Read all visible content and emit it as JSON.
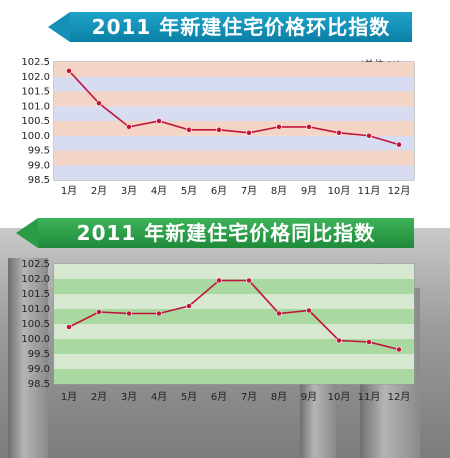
{
  "titles": {
    "top": "2011 年新建住宅价格环比指数",
    "bottom": "2011 年新建住宅价格同比指数"
  },
  "units": {
    "top": "(单位:%)",
    "bottom": "(单位:%)"
  },
  "colors": {
    "line": "#c0143c",
    "top_band_a": "#d8dcf0",
    "top_band_b": "#f4d4c4",
    "bottom_band_a": "#a9d8a0",
    "bottom_band_b": "#d6e8d0"
  },
  "chart_data": [
    {
      "type": "line",
      "title": "2011 年新建住宅价格环比指数",
      "categories": [
        "1月",
        "2月",
        "3月",
        "4月",
        "5月",
        "6月",
        "7月",
        "8月",
        "9月",
        "10月",
        "11月",
        "12月"
      ],
      "series": [
        {
          "values": [
            102.2,
            101.1,
            100.3,
            100.5,
            100.2,
            100.2,
            100.1,
            100.3,
            100.3,
            100.1,
            100.0,
            99.7
          ]
        }
      ],
      "ylim": [
        98.5,
        102.5
      ],
      "yticks": [
        "98.5",
        "99.0",
        "99.5",
        "100.0",
        "100.5",
        "101.0",
        "101.5",
        "102.0",
        "102.5"
      ],
      "unit": "(单位:%)"
    },
    {
      "type": "line",
      "title": "2011 年新建住宅价格同比指数",
      "categories": [
        "1月",
        "2月",
        "3月",
        "4月",
        "5月",
        "6月",
        "7月",
        "8月",
        "9月",
        "10月",
        "11月",
        "12月"
      ],
      "series": [
        {
          "values": [
            100.4,
            100.9,
            100.85,
            100.85,
            101.1,
            101.95,
            101.95,
            100.85,
            100.95,
            99.95,
            99.9,
            99.65
          ]
        }
      ],
      "ylim": [
        98.5,
        102.5
      ],
      "yticks": [
        "98.5",
        "99.0",
        "99.5",
        "100.0",
        "100.5",
        "101.0",
        "101.5",
        "102.0",
        "102.5"
      ],
      "unit": "(单位:%)"
    }
  ]
}
